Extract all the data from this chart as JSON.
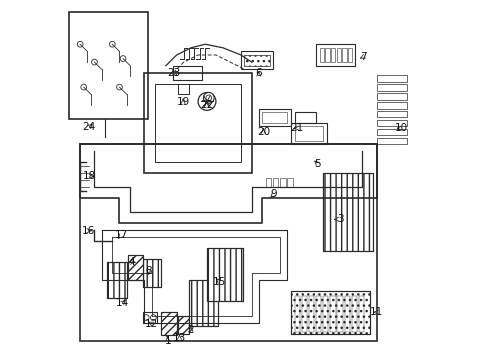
{
  "title": "",
  "bg_color": "#ffffff",
  "line_color": "#2a2a2a",
  "figsize": [
    4.89,
    3.6
  ],
  "dpi": 100
}
